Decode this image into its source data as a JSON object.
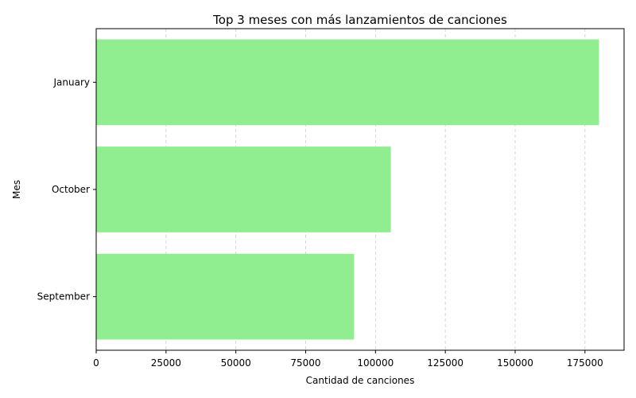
{
  "chart_data": {
    "type": "bar",
    "orientation": "horizontal",
    "title": "Top 3 meses con más lanzamientos de canciones",
    "xlabel": "Cantidad de canciones",
    "ylabel": "Mes",
    "categories": [
      "January",
      "October",
      "September"
    ],
    "values": [
      180000,
      105500,
      92300
    ],
    "xlim": [
      0,
      189000
    ],
    "xticks": [
      0,
      25000,
      50000,
      75000,
      100000,
      125000,
      150000,
      175000
    ],
    "xtick_labels": [
      "0",
      "25000",
      "50000",
      "75000",
      "100000",
      "125000",
      "150000",
      "175000"
    ],
    "grid": "x-dashed",
    "bar_color": "#90ee90"
  }
}
